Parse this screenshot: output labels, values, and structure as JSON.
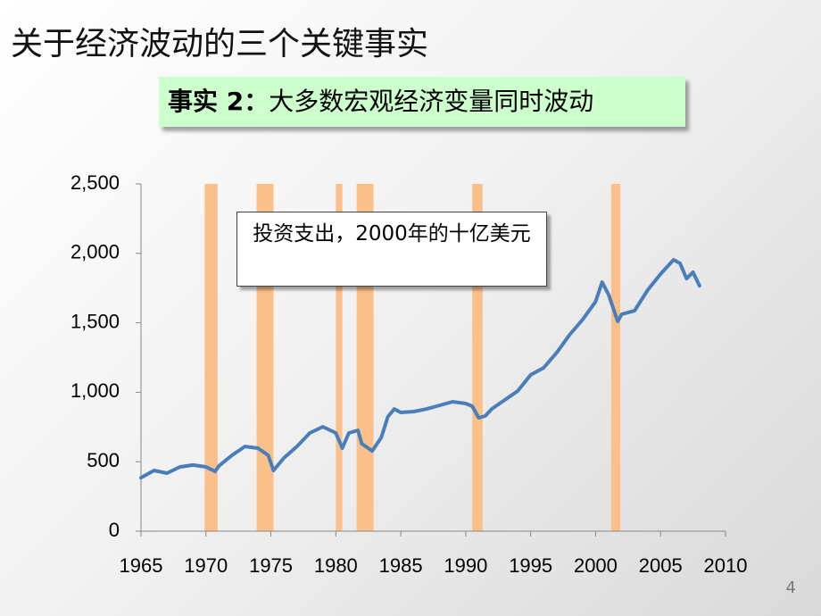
{
  "title": "关于经济波动的三个关键事实",
  "fact_label": "事实 2：",
  "fact_text": "大多数宏观经济变量同时波动",
  "page_number": "4",
  "chart_data": {
    "type": "line",
    "annotation": "投资支出，2000年的十亿美元",
    "x": [
      1965,
      1966,
      1967,
      1968,
      1969,
      1970,
      1970.7,
      1971,
      1972,
      1973,
      1974,
      1974.8,
      1975.2,
      1976,
      1977,
      1978,
      1979,
      1980,
      1980.5,
      1981,
      1981.7,
      1982,
      1982.8,
      1983.5,
      1984,
      1984.5,
      1985,
      1986,
      1987,
      1988,
      1989,
      1990,
      1990.5,
      1991,
      1991.5,
      1992,
      1993,
      1994,
      1995,
      1996,
      1997,
      1998,
      1999,
      2000,
      2000.5,
      2001,
      2001.7,
      2002,
      2003,
      2004,
      2005,
      2006,
      2006.5,
      2007,
      2007.5,
      2008
    ],
    "series": [
      {
        "color": "#4a7ebb",
        "values": [
          385,
          437,
          418,
          463,
          476,
          463,
          430,
          470,
          546,
          610,
          598,
          546,
          437,
          527,
          610,
          707,
          752,
          707,
          598,
          707,
          726,
          630,
          578,
          675,
          823,
          880,
          855,
          861,
          880,
          906,
          932,
          919,
          900,
          816,
          829,
          880,
          945,
          1009,
          1125,
          1176,
          1285,
          1414,
          1523,
          1652,
          1793,
          1703,
          1510,
          1562,
          1587,
          1735,
          1851,
          1954,
          1928,
          1819,
          1864,
          1767
        ]
      }
    ],
    "shaded_regions": [
      [
        1969.9,
        1970.9
      ],
      [
        1973.9,
        1975.2
      ],
      [
        1980.0,
        1980.5
      ],
      [
        1981.6,
        1982.9
      ],
      [
        1990.5,
        1991.3
      ],
      [
        2001.2,
        2001.9
      ]
    ],
    "shade_color": "#fbc08a",
    "xlim": [
      1965,
      2010
    ],
    "xticks": [
      1965,
      1970,
      1975,
      1980,
      1985,
      1990,
      1995,
      2000,
      2005,
      2010
    ],
    "ylim": [
      0,
      2500
    ],
    "yticks": [
      0,
      500,
      {
        "value": 1000,
        "label": "1,000"
      },
      {
        "value": 1500,
        "label": "1,500"
      },
      {
        "value": 2000,
        "label": "2,000"
      },
      {
        "value": 2500,
        "label": "2,500"
      }
    ]
  }
}
